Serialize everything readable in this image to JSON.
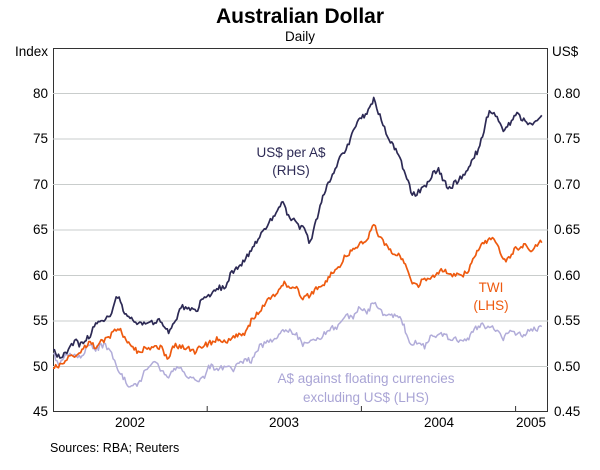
{
  "title": "Australian Dollar",
  "subtitle": "Daily",
  "footer": "Sources: RBA; Reuters",
  "left_axis": {
    "unit": "Index",
    "tick_labels": [
      "80",
      "75",
      "70",
      "65",
      "60",
      "55",
      "50",
      "45"
    ],
    "tick_values": [
      80,
      75,
      70,
      65,
      60,
      55,
      50,
      45
    ],
    "range": [
      45,
      85
    ],
    "gridline_values": [
      50,
      55,
      60,
      65,
      70,
      75,
      80
    ]
  },
  "right_axis": {
    "unit": "US$",
    "tick_labels": [
      "0.80",
      "0.75",
      "0.70",
      "0.65",
      "0.60",
      "0.55",
      "0.50",
      "0.45"
    ],
    "tick_values": [
      0.8,
      0.75,
      0.7,
      0.65,
      0.6,
      0.55,
      0.5,
      0.45
    ],
    "range": [
      0.45,
      0.85
    ]
  },
  "x_axis": {
    "year_labels": [
      "2002",
      "2003",
      "2004",
      "2005"
    ],
    "year_label_positions": [
      2002.5,
      2003.5,
      2004.5,
      2005.1
    ],
    "boundary_ticks": [
      2003,
      2004,
      2005
    ],
    "range": [
      2002.0,
      2005.21
    ]
  },
  "annotations": {
    "usd_line1": "US$ per A$",
    "usd_line2": "(RHS)",
    "twi_line1": "TWI",
    "twi_line2": "(LHS)",
    "floating_line1": "A$ against floating currencies",
    "floating_line2": "excluding US$ (LHS)"
  },
  "colors": {
    "usd_per_aud": "#2d2a55",
    "twi": "#ee5a0f",
    "floating": "#b1acd9",
    "gridline": "#c9cdcc",
    "axis_frame": "#333333"
  },
  "chart_data": {
    "type": "line",
    "title": "Australian Dollar",
    "subtitle": "Daily",
    "x_unit": "decimal_year",
    "x": [
      2002.0,
      2002.08,
      2002.17,
      2002.25,
      2002.33,
      2002.42,
      2002.5,
      2002.58,
      2002.67,
      2002.75,
      2002.83,
      2002.92,
      2003.0,
      2003.08,
      2003.17,
      2003.25,
      2003.33,
      2003.42,
      2003.5,
      2003.58,
      2003.67,
      2003.75,
      2003.83,
      2003.92,
      2004.0,
      2004.08,
      2004.17,
      2004.25,
      2004.33,
      2004.42,
      2004.5,
      2004.58,
      2004.67,
      2004.75,
      2004.83,
      2004.92,
      2005.0,
      2005.08,
      2005.17
    ],
    "series": [
      {
        "name": "US$ per A$",
        "axis": "RHS",
        "color": "#2d2a55",
        "values": [
          0.513,
          0.516,
          0.526,
          0.537,
          0.555,
          0.573,
          0.556,
          0.545,
          0.548,
          0.543,
          0.562,
          0.566,
          0.573,
          0.589,
          0.601,
          0.613,
          0.645,
          0.667,
          0.678,
          0.65,
          0.641,
          0.69,
          0.717,
          0.746,
          0.77,
          0.793,
          0.757,
          0.728,
          0.69,
          0.701,
          0.718,
          0.695,
          0.712,
          0.737,
          0.787,
          0.758,
          0.773,
          0.769,
          0.776
        ]
      },
      {
        "name": "TWI",
        "axis": "LHS",
        "color": "#ee5a0f",
        "values": [
          50.3,
          50.6,
          51.3,
          52.1,
          52.9,
          53.8,
          52.4,
          51.7,
          51.9,
          51.2,
          52.3,
          51.9,
          52.4,
          53.1,
          53.2,
          54.1,
          55.9,
          57.4,
          59.6,
          58.3,
          57.5,
          58.8,
          60.8,
          62.3,
          63.8,
          65.4,
          63.4,
          61.8,
          59.0,
          59.7,
          61.0,
          59.6,
          60.6,
          62.1,
          64.4,
          62.0,
          63.1,
          63.0,
          63.6
        ]
      },
      {
        "name": "A$ against floating currencies excluding US$",
        "axis": "LHS",
        "color": "#b1acd9",
        "values": [
          50.7,
          50.9,
          51.5,
          52.1,
          52.5,
          49.8,
          47.8,
          48.9,
          50.2,
          48.9,
          49.9,
          48.8,
          49.4,
          49.9,
          49.6,
          50.3,
          51.6,
          52.4,
          53.7,
          53.1,
          52.8,
          53.6,
          54.6,
          55.6,
          56.3,
          56.9,
          55.9,
          54.9,
          52.1,
          52.6,
          53.5,
          52.5,
          53.1,
          53.9,
          54.4,
          52.9,
          53.8,
          54.0,
          54.4
        ]
      }
    ],
    "lhs_ylim": [
      45,
      85
    ],
    "rhs_ylim": [
      0.45,
      0.85
    ],
    "grid": "horizontal-only",
    "legend_position": "inline-annotations"
  }
}
